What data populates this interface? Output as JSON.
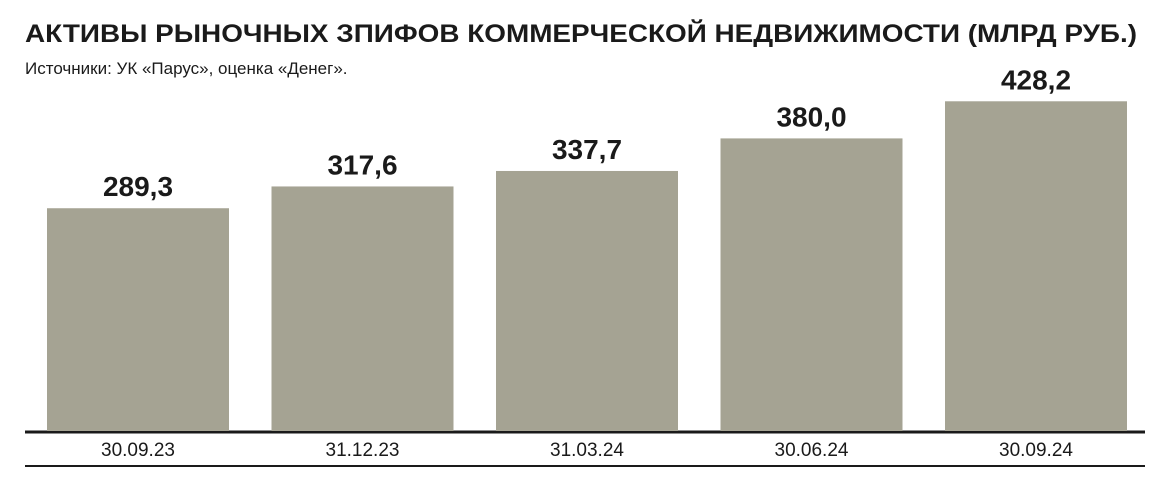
{
  "chart_data": {
    "type": "bar",
    "title": "АКТИВЫ РЫНОЧНЫХ ЗПИФОВ КОММЕРЧЕСКОЙ НЕДВИЖИМОСТИ (МЛРД РУБ.)",
    "subtitle": "Источники: УК «Парус», оценка «Денег».",
    "categories": [
      "30.09.23",
      "31.12.23",
      "31.03.24",
      "30.06.24",
      "30.09.24"
    ],
    "values": [
      289.3,
      317.6,
      337.7,
      380.0,
      428.2
    ],
    "value_labels": [
      "289,3",
      "317,6",
      "337,7",
      "380,0",
      "428,2"
    ],
    "color": "#a5a393"
  }
}
